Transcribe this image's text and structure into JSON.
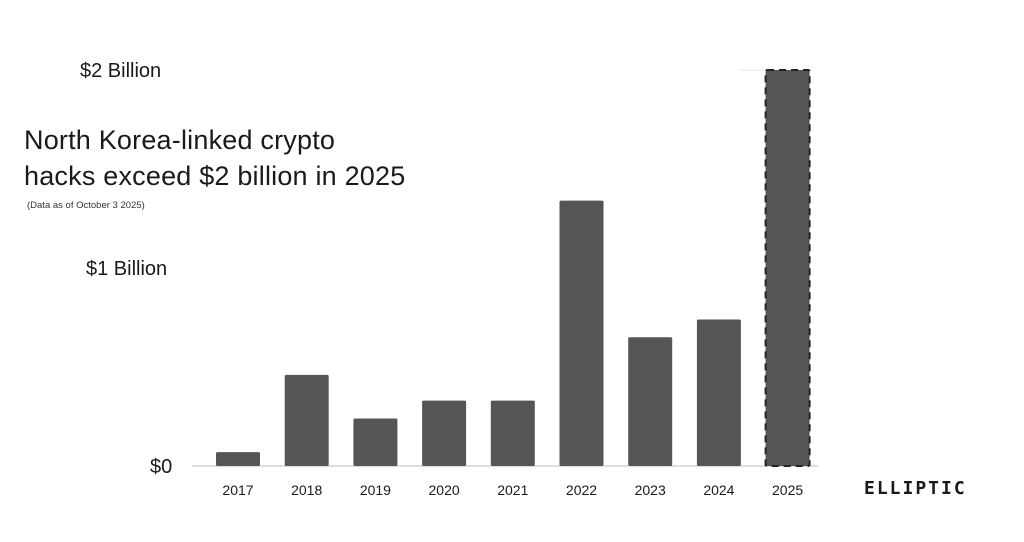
{
  "title_lines": [
    "North Korea-linked crypto",
    "hacks exceed $2 billion in 2025"
  ],
  "subtitle": "(Data as of October 3 2025)",
  "logo": "ELLIPTIC",
  "colors": {
    "bar": "#555555",
    "axis": "#bdbdbd",
    "text": "#1a1a1a"
  },
  "chart_data": {
    "type": "bar",
    "title": "North Korea-linked crypto hacks exceed $2 billion in 2025",
    "subtitle": "(Data as of October 3 2025)",
    "categories": [
      "2017",
      "2018",
      "2019",
      "2020",
      "2021",
      "2022",
      "2023",
      "2024",
      "2025"
    ],
    "values": [
      0.07,
      0.46,
      0.24,
      0.33,
      0.33,
      1.34,
      0.65,
      0.74,
      2.0
    ],
    "value_unit": "USD billions",
    "ylim": [
      0,
      2
    ],
    "yticks": [
      {
        "value": 0,
        "label": "$0"
      },
      {
        "value": 1,
        "label": "$1 Billion"
      },
      {
        "value": 2,
        "label": "$2 Billion"
      }
    ],
    "highlighted": [
      "2025"
    ],
    "highlight_style": "dashed-outline",
    "grid": false,
    "legend": "none"
  }
}
